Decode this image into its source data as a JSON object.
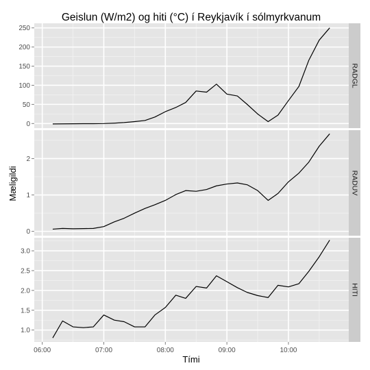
{
  "chart_data": {
    "type": "line",
    "title": "Geislun (W/m2) og hiti (°C) í Reykjavík í sólmyrkvanum",
    "xlabel": "Tími",
    "ylabel": "Mæligildi",
    "x_ticks": [
      "06:00",
      "07:00",
      "08:00",
      "09:00",
      "10:00"
    ],
    "x_tick_values": [
      6.0,
      7.0,
      8.0,
      9.0,
      10.0
    ],
    "xlim": [
      5.87,
      10.98
    ],
    "x": [
      6.17,
      6.33,
      6.5,
      6.67,
      6.83,
      7.0,
      7.17,
      7.33,
      7.5,
      7.67,
      7.83,
      8.0,
      8.17,
      8.33,
      8.5,
      8.67,
      8.83,
      9.0,
      9.17,
      9.33,
      9.5,
      9.67,
      9.83,
      10.0,
      10.17,
      10.33,
      10.5,
      10.67
    ],
    "grid": true,
    "panels": [
      {
        "strip": "RADGL",
        "ylim": [
          -12,
          262
        ],
        "yticks": [
          0,
          50,
          100,
          150,
          200,
          250
        ],
        "y_tick_labels": [
          "0",
          "50",
          "100",
          "150",
          "200",
          "250"
        ],
        "values": [
          -1,
          -0.8,
          -0.6,
          -0.4,
          -0.3,
          0,
          1,
          2.5,
          5,
          8,
          17,
          31,
          42,
          55,
          85,
          82,
          103,
          77,
          72,
          50,
          25,
          5,
          22,
          60,
          97,
          165,
          218,
          250
        ]
      },
      {
        "strip": "RADUV",
        "ylim": [
          -0.12,
          2.78
        ],
        "yticks": [
          0,
          1,
          2
        ],
        "y_tick_labels": [
          "0",
          "1",
          "2"
        ],
        "values": [
          0.06,
          0.08,
          0.07,
          0.075,
          0.08,
          0.13,
          0.26,
          0.36,
          0.5,
          0.63,
          0.73,
          0.85,
          1.01,
          1.12,
          1.1,
          1.15,
          1.25,
          1.3,
          1.33,
          1.28,
          1.12,
          0.85,
          1.04,
          1.36,
          1.6,
          1.9,
          2.34,
          2.68
        ]
      },
      {
        "strip": "HITI",
        "ylim": [
          0.7,
          3.33
        ],
        "yticks": [
          1.0,
          1.5,
          2.0,
          2.5,
          3.0
        ],
        "y_tick_labels": [
          "1.0",
          "1.5",
          "2.0",
          "2.5",
          "3.0"
        ],
        "values": [
          0.8,
          1.23,
          1.08,
          1.06,
          1.08,
          1.38,
          1.25,
          1.21,
          1.08,
          1.08,
          1.38,
          1.57,
          1.88,
          1.8,
          2.1,
          2.06,
          2.37,
          2.22,
          2.07,
          1.95,
          1.87,
          1.82,
          2.13,
          2.09,
          2.17,
          2.48,
          2.85,
          3.27
        ]
      }
    ]
  },
  "colors": {
    "panel_bg": "#e5e5e5",
    "grid_major": "#ffffff",
    "grid_minor": "#f2f2f2",
    "strip_bg": "#cccccc",
    "line": "#000000",
    "tick_text": "#4d4d4d"
  }
}
